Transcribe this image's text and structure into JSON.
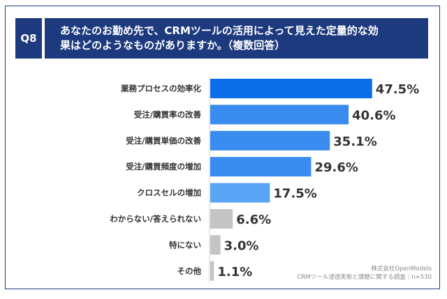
{
  "header": {
    "question_id": "Q8",
    "question_lines": [
      "あなたのお勤め先で、CRMツールの活用によって見えた定量的な効",
      "果はどのようなものがありますか。（複数回答）"
    ]
  },
  "chart_data": {
    "type": "bar",
    "orientation": "horizontal",
    "categories": [
      "業務プロセスの効率化",
      "受注/購買率の改善",
      "受注/購買単価の改善",
      "受注/購買頻度の増加",
      "クロスセルの増加",
      "わからない/答えられない",
      "特にない",
      "その他"
    ],
    "values": [
      47.5,
      40.6,
      35.1,
      29.6,
      17.5,
      6.6,
      3.0,
      1.1
    ],
    "value_labels": [
      "47.5%",
      "40.6%",
      "35.1%",
      "29.6%",
      "17.5%",
      "6.6%",
      "3.0%",
      "1.1%"
    ],
    "bar_colors": [
      "#0a6fe8",
      "#3a8cf0",
      "#3a8cf0",
      "#3a8cf0",
      "#5aa4f5",
      "#c4c4c4",
      "#c4c4c4",
      "#c4c4c4"
    ],
    "grid": false,
    "legend": "none"
  },
  "source": {
    "lines": [
      "株式会社OpenModels",
      "CRMツール浸透実態と課題に関する調査｜n=530"
    ]
  },
  "colors": {
    "header_bg": "#1d3a7e",
    "frame_border": "#1f3f86"
  }
}
